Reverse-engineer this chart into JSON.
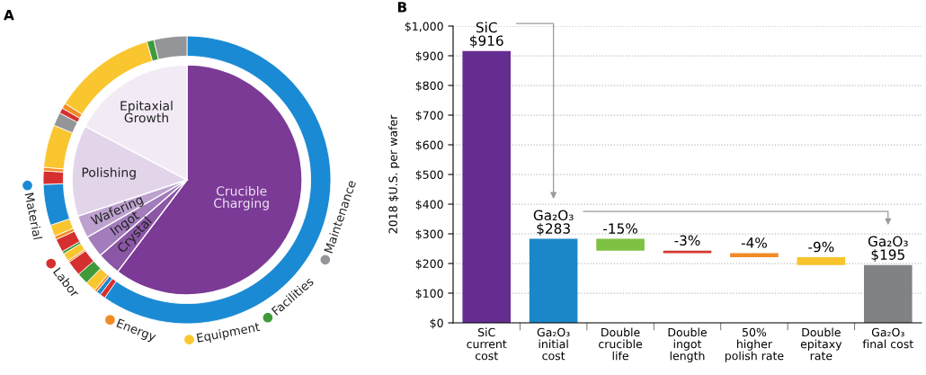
{
  "chart_data": [
    {
      "type": "pie",
      "title": "A",
      "categories": [
        "Crucible\nCharging",
        "Crystal",
        "Ingot",
        "Wafering",
        "Polishing",
        "Epitaxial\nGrowth"
      ],
      "series": [
        {
          "values": [
            60.3,
            3.3,
            3.1,
            3.2,
            12.8,
            17.3
          ],
          "colors": [
            "#7b3a96",
            "#8b56a6",
            "#a27cbb",
            "#bda1cf",
            "#e2d5ea",
            "#f2ebf5"
          ]
        },
        {
          "type": "donut",
          "x": [
            null,
            null,
            null,
            null,
            null,
            null,
            null,
            null,
            null,
            null,
            null,
            null,
            null,
            null,
            null,
            null,
            null,
            null,
            null,
            null,
            null,
            null,
            null
          ],
          "values": [
            59.7,
            0.6,
            0.5,
            0.3,
            1.2,
            1.3,
            1.7,
            0.2,
            0.9,
            0.3,
            1.5,
            0.4,
            1.3,
            4.6,
            1.5,
            0.4,
            4.8,
            1.5,
            0.6,
            0.6,
            11.6,
            0.8,
            3.7
          ],
          "colors": [
            "#1a8ad4",
            "#d62f2f",
            "#1a8ad4",
            "#f38b25",
            "#f9c62f",
            "#3f9a3a",
            "#d62f2f",
            "#f38b25",
            "#f9c62f",
            "#3f9a3a",
            "#d62f2f",
            "#f38b25",
            "#f9c62f",
            "#1a8ad4",
            "#d62f2f",
            "#f38b25",
            "#f9c62f",
            "#939598",
            "#d62f2f",
            "#f38b25",
            "#f9c62f",
            "#3f9a3a",
            "#939598"
          ]
        }
      ],
      "annotations": [
        "Material",
        "Labor",
        "Energy",
        "Equipment",
        "Facilities",
        "Maintenance"
      ]
    },
    {
      "type": "bar",
      "title": "B",
      "ylabel": "2018 $U.S. per wafer",
      "categories": [
        "SiC\ncurrent\ncost",
        "Ga₂O₃\ninitial\ncost",
        "Double\ncrucible\nlife",
        "Double\ningot\nlength",
        "50%\nhigher\npolish rate",
        "Double\nepitaxy\nrate",
        "Ga₂O₃\nfinal cost"
      ],
      "values": [
        916,
        283,
        -40,
        -8,
        -14,
        -26,
        195
      ],
      "base": [
        0,
        0,
        283,
        243,
        235,
        221,
        0
      ],
      "colors": [
        "#662d91",
        "#1b87c9",
        "#7dc242",
        "#d2382f",
        "#f08a24",
        "#f7c42b",
        "#808285"
      ],
      "value_labels": [
        "SiC\n$916",
        "Ga₂O₃\n$283",
        null,
        null,
        null,
        null,
        "Ga₂O₃\n$195"
      ],
      "annotations": [
        {
          "text": "-15%",
          "x": "Double\ncrucible\nlife",
          "y": 283
        },
        {
          "text": "-3%",
          "x": "Double\ningot\nlength",
          "y": 243
        },
        {
          "text": "-4%",
          "x": "50%\nhigher\npolish rate",
          "y": 235
        },
        {
          "text": "-9%",
          "x": "Double\nepitaxy\nrate",
          "y": 221
        }
      ],
      "ylim": [
        0,
        1000
      ],
      "yticks": [
        {
          "value": 0,
          "label": "$0"
        },
        {
          "value": 100,
          "label": "$100"
        },
        {
          "value": 200,
          "label": "$200"
        },
        {
          "value": 300,
          "label": "$300"
        },
        {
          "value": 400,
          "label": "$400"
        },
        {
          "value": 500,
          "label": "$500"
        },
        {
          "value": 600,
          "label": "$600"
        },
        {
          "value": 700,
          "label": "$700"
        },
        {
          "value": 800,
          "label": "$800"
        },
        {
          "value": 900,
          "label": "$900"
        },
        {
          "value": 1000,
          "label": "$1,000"
        }
      ],
      "grid": "y"
    }
  ]
}
